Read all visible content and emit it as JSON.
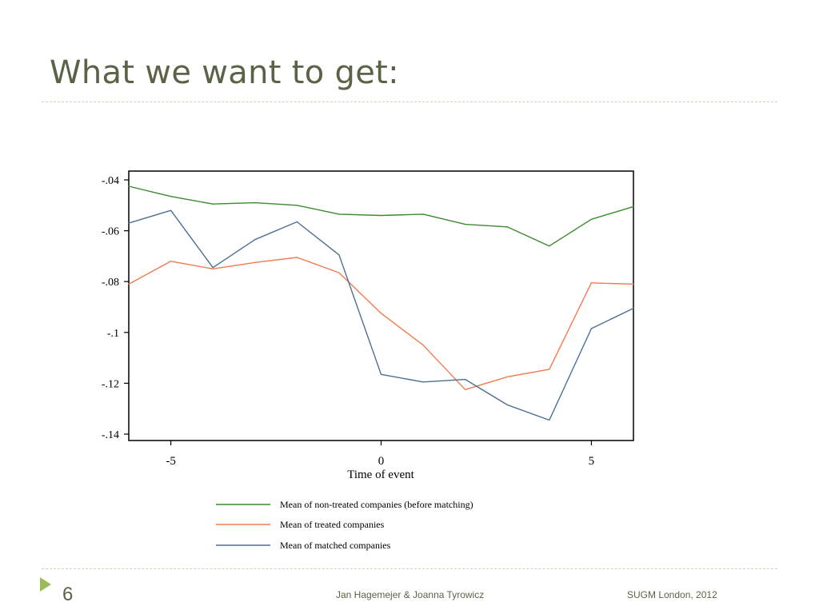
{
  "slide": {
    "title": "What we want to get:",
    "page_number": "6",
    "footer_author": "Jan Hagemejer & Joanna Tyrowicz",
    "footer_event": "SUGM London, 2012"
  },
  "colors": {
    "title": "#5a6346",
    "accent": "#9bbb59",
    "series_green": "#3a8a2e",
    "series_orange": "#f47a4f",
    "series_blue": "#4a6f95"
  },
  "chart_data": {
    "type": "line",
    "xlabel": "Time of event",
    "ylabel": "",
    "xlim": [
      -6,
      6
    ],
    "ylim": [
      -0.14,
      -0.04
    ],
    "x_ticks": [
      -5,
      0,
      5
    ],
    "x_tick_labels": [
      "-5",
      "0",
      "5"
    ],
    "y_ticks": [
      -0.04,
      -0.06,
      -0.08,
      -0.1,
      -0.12,
      -0.14
    ],
    "y_tick_labels": [
      "-.04",
      "-.06",
      "-.08",
      "-.1",
      "-.12",
      "-.14"
    ],
    "grid": false,
    "legend_position": "bottom",
    "x": [
      -6,
      -5,
      -4,
      -3,
      -2,
      -1,
      0,
      1,
      2,
      3,
      4,
      5,
      6
    ],
    "series": [
      {
        "name": "Mean of non-treated companies (before matching)",
        "color": "#3a8a2e",
        "values": [
          -0.0425,
          -0.0465,
          -0.0495,
          -0.049,
          -0.05,
          -0.0535,
          -0.054,
          -0.0535,
          -0.0575,
          -0.0585,
          -0.066,
          -0.0555,
          -0.0505
        ]
      },
      {
        "name": "Mean of treated companies",
        "color": "#f47a4f",
        "values": [
          -0.081,
          -0.072,
          -0.075,
          -0.0725,
          -0.0705,
          -0.0765,
          -0.0925,
          -0.105,
          -0.1225,
          -0.1175,
          -0.1145,
          -0.0805,
          -0.081
        ]
      },
      {
        "name": "Mean of matched companies",
        "color": "#4a6f95",
        "values": [
          -0.057,
          -0.052,
          -0.0745,
          -0.0635,
          -0.0565,
          -0.0695,
          -0.1165,
          -0.1195,
          -0.1185,
          -0.1285,
          -0.1345,
          -0.0985,
          -0.0905
        ]
      }
    ]
  }
}
